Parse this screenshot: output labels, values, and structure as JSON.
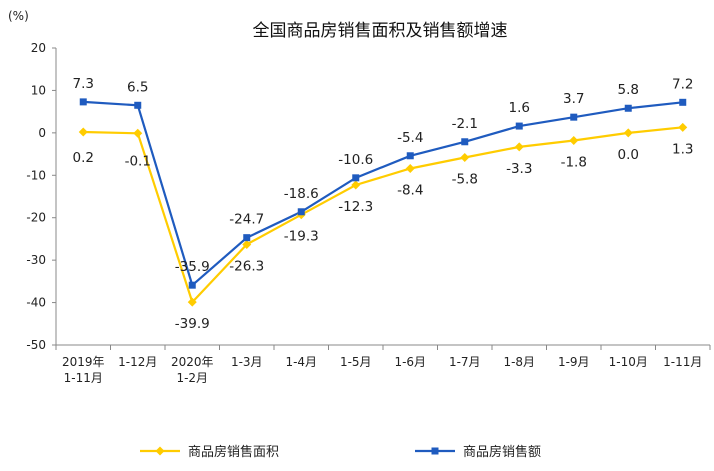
{
  "chart_data": {
    "type": "line",
    "title": "全国商品房销售面积及销售额增速",
    "ylabel": "(%)",
    "xlabel": "",
    "ylim": [
      -50,
      20
    ],
    "yticks": [
      "20",
      "10",
      "0",
      "-10",
      "-20",
      "-30",
      "-40",
      "-50"
    ],
    "categories": [
      [
        "2019年",
        "1-11月"
      ],
      [
        "1-12月"
      ],
      [
        "2020年",
        "1-2月"
      ],
      [
        "1-3月"
      ],
      [
        "1-4月"
      ],
      [
        "1-5月"
      ],
      [
        "1-6月"
      ],
      [
        "1-7月"
      ],
      [
        "1-8月"
      ],
      [
        "1-9月"
      ],
      [
        "1-10月"
      ],
      [
        "1-11月"
      ]
    ],
    "series": [
      {
        "name": "商品房销售面积",
        "color": "#FFCC00",
        "marker": "diamond",
        "values": [
          0.2,
          -0.1,
          -39.9,
          -26.3,
          -19.3,
          -12.3,
          -8.4,
          -5.8,
          -3.3,
          -1.8,
          0.0,
          1.3
        ],
        "labels": [
          "0.2",
          "-0.1",
          "-39.9",
          "-26.3",
          "-19.3",
          "-12.3",
          "-8.4",
          "-5.8",
          "-3.3",
          "-1.8",
          "0.0",
          "1.3"
        ]
      },
      {
        "name": "商品房销售额",
        "color": "#1F5BBF",
        "marker": "square",
        "values": [
          7.3,
          6.5,
          -35.9,
          -24.7,
          -18.6,
          -10.6,
          -5.4,
          -2.1,
          1.6,
          3.7,
          5.8,
          7.2
        ],
        "labels": [
          "7.3",
          "6.5",
          "-35.9",
          "-24.7",
          "-18.6",
          "-10.6",
          "-5.4",
          "-2.1",
          "1.6",
          "3.7",
          "5.8",
          "7.2"
        ]
      }
    ],
    "grid": false,
    "legend": "bottom"
  }
}
